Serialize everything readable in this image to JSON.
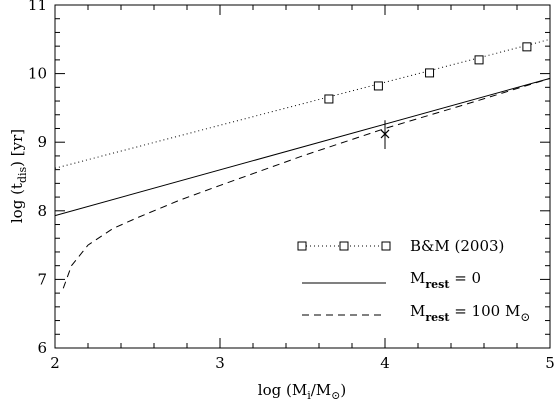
{
  "chart_data": {
    "type": "line",
    "xlabel": {
      "pre": "log (M",
      "sub": "i",
      "mid": "/M",
      "sub2": "⊙",
      "post": ")"
    },
    "ylabel": {
      "pre": "log (t",
      "sub": "dis",
      "post": ")   [yr]"
    },
    "xlim": [
      2,
      5
    ],
    "ylim": [
      6,
      11
    ],
    "xticks": [
      2,
      3,
      4,
      5
    ],
    "yticks": [
      6,
      7,
      8,
      9,
      10,
      11
    ],
    "xtick_labels": [
      "2",
      "3",
      "4",
      "5"
    ],
    "ytick_labels": [
      "6",
      "7",
      "8",
      "9",
      "10",
      "11"
    ],
    "grid": false,
    "legend_position": "bottom-right",
    "series": [
      {
        "name": "B&M (2003)",
        "style": "dotted",
        "marker": "square",
        "line": [
          [
            2.0,
            8.62
          ],
          [
            5.0,
            10.5
          ]
        ],
        "points": [
          [
            3.66,
            9.63
          ],
          [
            3.96,
            9.82
          ],
          [
            4.27,
            10.01
          ],
          [
            4.57,
            10.2
          ],
          [
            4.86,
            10.39
          ]
        ]
      },
      {
        "name_parts": {
          "pre": "M",
          "sub": "rest",
          "post": "  =  0"
        },
        "style": "solid",
        "points": [
          [
            2.0,
            7.93
          ],
          [
            5.0,
            9.93
          ]
        ]
      },
      {
        "name_parts": {
          "pre": "M",
          "sub": "rest",
          "post": "  =  100  M",
          "sym": "⊙"
        },
        "style": "dashed",
        "points": [
          [
            2.05,
            6.87
          ],
          [
            2.1,
            7.2
          ],
          [
            2.2,
            7.5
          ],
          [
            2.35,
            7.74
          ],
          [
            2.5,
            7.9
          ],
          [
            2.75,
            8.15
          ],
          [
            3.0,
            8.37
          ],
          [
            3.5,
            8.8
          ],
          [
            4.0,
            9.2
          ],
          [
            4.5,
            9.56
          ],
          [
            5.0,
            9.93
          ]
        ]
      }
    ],
    "marker_point": {
      "symbol": "×",
      "x": 4.0,
      "y": 9.12,
      "err_low": 8.9,
      "err_high": 9.32
    }
  }
}
